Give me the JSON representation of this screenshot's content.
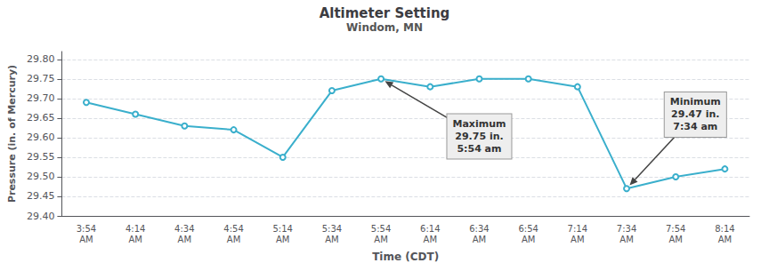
{
  "chart_data": {
    "type": "line",
    "title": "Altimeter Setting",
    "subtitle": "Windom, MN",
    "xlabel": "Time (CDT)",
    "ylabel": "Pressure (in. of Mercury)",
    "categories": [
      "3:54\nAM",
      "4:14\nAM",
      "4:34\nAM",
      "4:54\nAM",
      "5:14\nAM",
      "5:34\nAM",
      "5:54\nAM",
      "6:14\nAM",
      "6:34\nAM",
      "6:54\nAM",
      "7:14\nAM",
      "7:34\nAM",
      "7:54\nAM",
      "8:14\nAM"
    ],
    "values": [
      29.69,
      29.66,
      29.63,
      29.62,
      29.55,
      29.72,
      29.75,
      29.73,
      29.75,
      29.75,
      29.73,
      29.47,
      29.5,
      29.52
    ],
    "color": "#3AAFCC",
    "ylim": [
      29.4,
      29.82
    ],
    "yticks": [
      {
        "value": 29.4,
        "label": "29.40"
      },
      29.45,
      {
        "value": 29.5,
        "label": "29.50"
      },
      29.55,
      {
        "value": 29.6,
        "label": "29.60"
      },
      29.65,
      {
        "value": 29.7,
        "label": "29.70"
      },
      29.75,
      {
        "value": 29.8,
        "label": "29.80"
      }
    ],
    "grid": true,
    "annotations": [
      {
        "text": "Maximum\n29.75 in.\n5:54 am",
        "x": "5:54\nAM",
        "y": 29.75
      },
      {
        "text": "Minimum\n29.47 in.\n7:34 am",
        "x": "7:34\nAM",
        "y": 29.47
      }
    ]
  }
}
